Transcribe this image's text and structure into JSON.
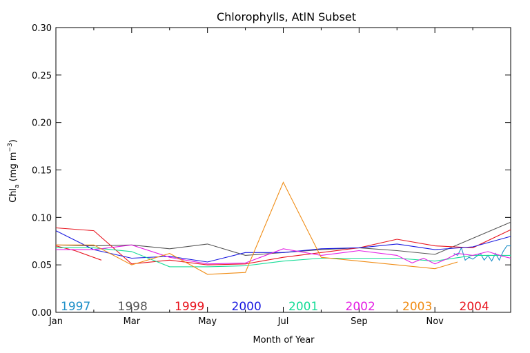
{
  "chart_data": {
    "type": "line",
    "title": "Chlorophylls, AtlN Subset",
    "xlabel": "Month of Year",
    "ylabel": {
      "main": "Chl",
      "sub": "a",
      "unit_prefix": " (mg m",
      "sup": "−3",
      "unit_suffix": ")"
    },
    "xlim": [
      0,
      12
    ],
    "ylim": [
      0,
      0.3
    ],
    "x_ticks": [
      {
        "value": 0,
        "label": "Jan"
      },
      {
        "value": 2,
        "label": "Mar"
      },
      {
        "value": 4,
        "label": "May"
      },
      {
        "value": 6,
        "label": "Jul"
      },
      {
        "value": 8,
        "label": "Sep"
      },
      {
        "value": 10,
        "label": "Nov"
      }
    ],
    "y_ticks": [
      {
        "value": 0,
        "label": "0.00"
      },
      {
        "value": 0.05,
        "label": "0.05"
      },
      {
        "value": 0.1,
        "label": "0.10"
      },
      {
        "value": 0.15,
        "label": "0.15"
      },
      {
        "value": 0.2,
        "label": "0.20"
      },
      {
        "value": 0.25,
        "label": "0.25"
      },
      {
        "value": 0.3,
        "label": "0.30"
      }
    ],
    "grid": false,
    "legend_placement": "bottom, inline year labels",
    "series": [
      {
        "name": "1997",
        "color": "#1e90c8",
        "x": [
          10.5,
          10.6,
          10.7,
          10.8,
          10.9,
          11.0,
          11.1,
          11.2,
          11.3,
          11.4,
          11.5,
          11.6,
          11.7,
          11.8,
          11.9,
          12.0
        ],
        "y": [
          0.062,
          0.06,
          0.068,
          0.055,
          0.058,
          0.056,
          0.059,
          0.062,
          0.055,
          0.06,
          0.054,
          0.062,
          0.055,
          0.064,
          0.07,
          0.07
        ]
      },
      {
        "name": "1998",
        "color": "#555555",
        "x": [
          0,
          1,
          2,
          3,
          4,
          5,
          6,
          7,
          8,
          9,
          10,
          11,
          12
        ],
        "y": [
          0.071,
          0.07,
          0.071,
          0.067,
          0.072,
          0.06,
          0.063,
          0.066,
          0.068,
          0.065,
          0.061,
          0.078,
          0.095
        ]
      },
      {
        "name": "1999",
        "color": "#e8141e",
        "x": [
          0,
          1,
          2,
          3,
          4,
          5,
          6,
          7,
          8,
          9,
          10,
          11,
          12
        ],
        "y": [
          0.089,
          0.086,
          0.051,
          0.055,
          0.05,
          0.051,
          0.058,
          0.063,
          0.068,
          0.077,
          0.07,
          0.068,
          0.087
        ]
      },
      {
        "name": "1999 (early)",
        "color": "#e8141e",
        "x": [
          0,
          0.5,
          1.2
        ],
        "y": [
          0.07,
          0.065,
          0.055
        ]
      },
      {
        "name": "2000",
        "color": "#1a1ae0",
        "x": [
          0,
          1,
          2,
          3,
          4,
          5,
          6,
          7,
          8,
          9,
          10,
          11,
          12
        ],
        "y": [
          0.086,
          0.066,
          0.057,
          0.059,
          0.053,
          0.063,
          0.063,
          0.067,
          0.068,
          0.072,
          0.066,
          0.069,
          0.08
        ]
      },
      {
        "name": "2001",
        "color": "#14dc96",
        "x": [
          0,
          1,
          2,
          3,
          4,
          5,
          6,
          7,
          8,
          9,
          10,
          11,
          12
        ],
        "y": [
          0.068,
          0.068,
          0.064,
          0.048,
          0.048,
          0.049,
          0.054,
          0.057,
          0.057,
          0.057,
          0.054,
          0.06,
          0.06
        ]
      },
      {
        "name": "2002",
        "color": "#e41ee4",
        "x": [
          0,
          1,
          2,
          3,
          4,
          5,
          6,
          7,
          8,
          9,
          9.4,
          9.7,
          10,
          10.3,
          10.6,
          11.0,
          11.4,
          11.8,
          12.0
        ],
        "y": [
          0.066,
          0.066,
          0.071,
          0.058,
          0.051,
          0.052,
          0.067,
          0.06,
          0.065,
          0.06,
          0.052,
          0.057,
          0.051,
          0.056,
          0.062,
          0.06,
          0.064,
          0.059,
          0.057
        ]
      },
      {
        "name": "2003",
        "color": "#f08c14",
        "x": [
          0,
          1,
          2,
          3,
          4,
          5,
          6,
          7,
          8,
          9,
          10,
          10.6
        ],
        "y": [
          0.071,
          0.071,
          0.05,
          0.062,
          0.04,
          0.042,
          0.137,
          0.058,
          0.054,
          0.05,
          0.046,
          0.053
        ]
      },
      {
        "name": "2004",
        "color": "#e8141e",
        "x": [],
        "y": []
      }
    ],
    "legend": [
      {
        "label": "1997",
        "color": "#1e90c8"
      },
      {
        "label": "1998",
        "color": "#555555"
      },
      {
        "label": "1999",
        "color": "#e8141e"
      },
      {
        "label": "2000",
        "color": "#1a1ae0"
      },
      {
        "label": "2001",
        "color": "#14dc96"
      },
      {
        "label": "2002",
        "color": "#e41ee4"
      },
      {
        "label": "2003",
        "color": "#f08c14"
      },
      {
        "label": "2004",
        "color": "#e8141e"
      }
    ]
  }
}
